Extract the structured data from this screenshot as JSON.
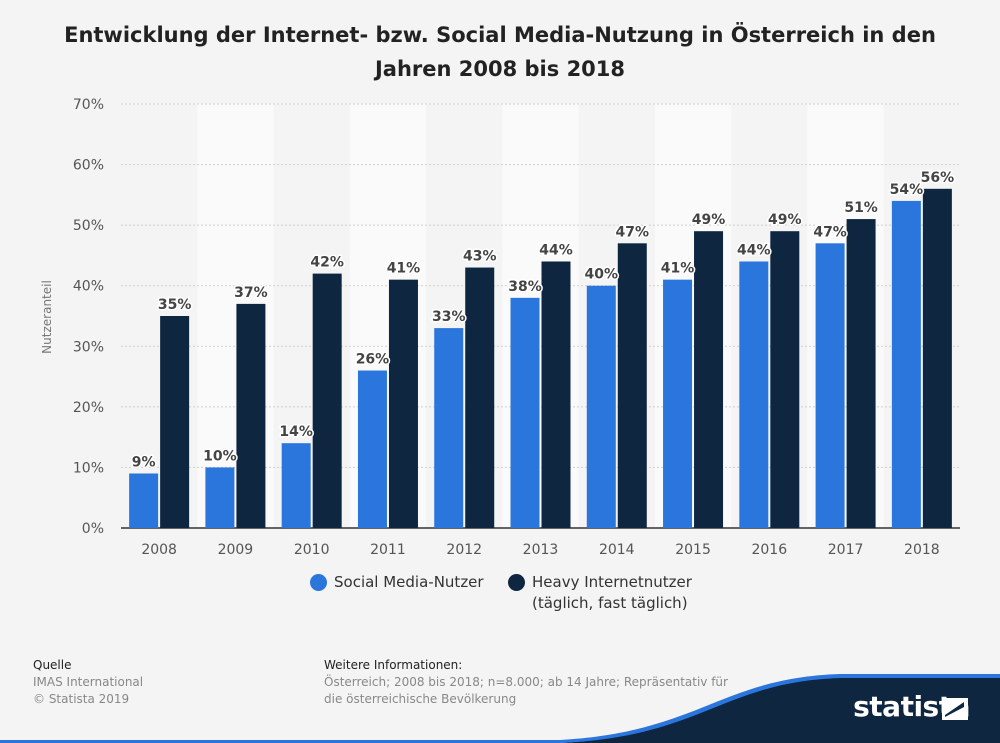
{
  "title": "Entwicklung der Internet- bzw. Social Media-Nutzung in Österreich in den Jahren 2008 bis 2018",
  "chart_data": {
    "type": "bar",
    "title": "Entwicklung der Internet- bzw. Social Media-Nutzung in Österreich in den Jahren 2008 bis 2018",
    "xlabel": "",
    "ylabel": "Nutzeranteil",
    "ylim": [
      0,
      70
    ],
    "yticks": [
      "0%",
      "10%",
      "20%",
      "30%",
      "40%",
      "50%",
      "60%",
      "70%"
    ],
    "grid": true,
    "legend_position": "bottom",
    "categories": [
      "2008",
      "2009",
      "2010",
      "2011",
      "2012",
      "2013",
      "2014",
      "2015",
      "2016",
      "2017",
      "2018"
    ],
    "series": [
      {
        "name": "Social Media-Nutzer",
        "color": "#2a76dd",
        "values": [
          9,
          10,
          14,
          26,
          33,
          38,
          40,
          41,
          44,
          47,
          54
        ],
        "labels": [
          "9%",
          "10%",
          "14%",
          "26%",
          "33%",
          "38%",
          "40%",
          "41%",
          "44%",
          "47%",
          "54%"
        ]
      },
      {
        "name": "Heavy Internetnutzer (täglich, fast täglich)",
        "color": "#0e2640",
        "values": [
          35,
          37,
          42,
          41,
          43,
          44,
          47,
          49,
          49,
          51,
          56
        ],
        "labels": [
          "35%",
          "37%",
          "42%",
          "41%",
          "43%",
          "44%",
          "47%",
          "49%",
          "49%",
          "51%",
          "56%"
        ]
      }
    ]
  },
  "legend": {
    "item1": "Social Media-Nutzer",
    "item2_line1": "Heavy Internetnutzer",
    "item2_line2": "(täglich, fast täglich)"
  },
  "footer": {
    "source_heading": "Quelle",
    "source_line1": "IMAS International",
    "source_line2": "© Statista 2019",
    "info_heading": "Weitere Informationen:",
    "info_text": "Österreich; 2008 bis 2018; n=8.000; ab 14 Jahre; Repräsentativ für die österreichische Bevölkerung"
  },
  "brand": "statista"
}
